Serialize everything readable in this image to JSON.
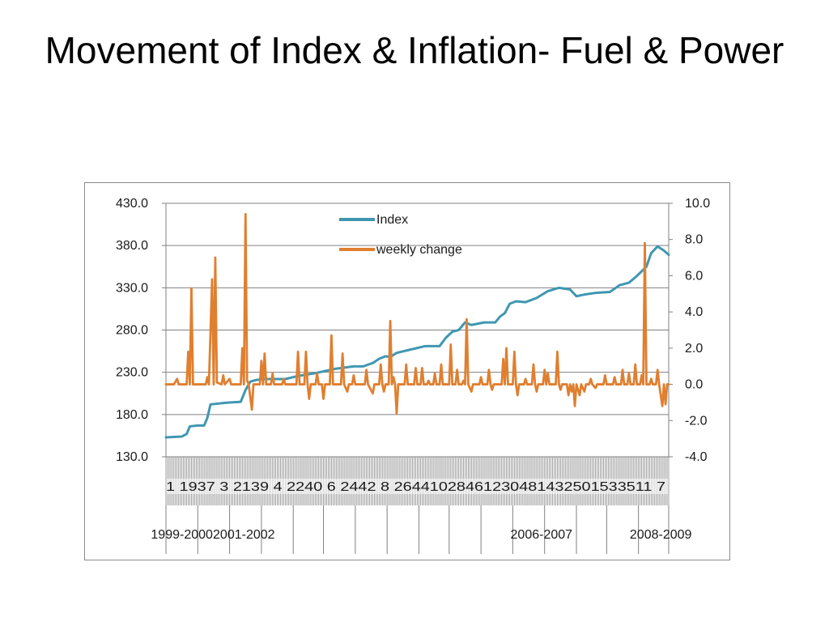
{
  "slide": {
    "title": "Movement of Index & Inflation- Fuel & Power"
  },
  "colors": {
    "index": "#4097B1",
    "weekly_change": "#E07F2F",
    "grid": "#808080",
    "axis": "#808080"
  },
  "chart_data": {
    "type": "line",
    "title": "",
    "left_axis": {
      "min": 130,
      "max": 430,
      "step": 50,
      "tick_labels": [
        "430.0",
        "380.0",
        "330.0",
        "280.0",
        "230.0",
        "180.0",
        "130.0"
      ]
    },
    "right_axis": {
      "min": -4,
      "max": 10,
      "step": 2,
      "tick_labels": [
        "10.0",
        "8.0",
        "6.0",
        "4.0",
        "2.0",
        "0.0",
        "-2.0",
        "-4.0"
      ]
    },
    "gridlines": true,
    "legend_position": "top-center",
    "week_tick_labels": "1 1937 3 2139 4 2240 6 2442 8 26441028461230481432501533511 7",
    "year_labels": [
      {
        "label": "1999-2000",
        "at_week": 10
      },
      {
        "label": "2001-2002",
        "at_week": 49
      },
      {
        "label": "2006-2007",
        "at_week": 236
      },
      {
        "label": "2008-2009",
        "at_week": 311
      }
    ],
    "year_boundaries": [
      0,
      20,
      40,
      60,
      80,
      99,
      119,
      139,
      159,
      178,
      198,
      218,
      238,
      258,
      277,
      297,
      316
    ],
    "week_count": 316,
    "series": [
      {
        "name": "Index",
        "axis": "left",
        "points": [
          [
            0,
            153
          ],
          [
            10,
            154
          ],
          [
            13,
            157
          ],
          [
            15,
            166
          ],
          [
            20,
            167
          ],
          [
            24,
            167
          ],
          [
            26,
            176
          ],
          [
            28,
            192
          ],
          [
            38,
            194
          ],
          [
            47,
            195
          ],
          [
            50,
            209
          ],
          [
            53,
            219
          ],
          [
            57,
            221
          ],
          [
            62,
            222
          ],
          [
            75,
            222
          ],
          [
            84,
            226
          ],
          [
            94,
            229
          ],
          [
            106,
            234
          ],
          [
            118,
            237
          ],
          [
            124,
            237
          ],
          [
            130,
            241
          ],
          [
            134,
            246
          ],
          [
            138,
            249
          ],
          [
            141,
            248
          ],
          [
            145,
            253
          ],
          [
            154,
            257
          ],
          [
            163,
            261
          ],
          [
            172,
            261
          ],
          [
            176,
            271
          ],
          [
            180,
            278
          ],
          [
            184,
            280
          ],
          [
            188,
            289
          ],
          [
            192,
            286
          ],
          [
            200,
            289
          ],
          [
            207,
            289
          ],
          [
            210,
            296
          ],
          [
            213,
            300
          ],
          [
            216,
            311
          ],
          [
            220,
            314
          ],
          [
            226,
            313
          ],
          [
            233,
            318
          ],
          [
            240,
            326
          ],
          [
            247,
            330
          ],
          [
            254,
            328
          ],
          [
            258,
            320
          ],
          [
            263,
            322
          ],
          [
            270,
            324
          ],
          [
            279,
            325
          ],
          [
            285,
            333
          ],
          [
            291,
            336
          ],
          [
            296,
            344
          ],
          [
            302,
            355
          ],
          [
            305,
            371
          ],
          [
            309,
            379
          ],
          [
            313,
            374
          ],
          [
            316,
            369
          ]
        ]
      },
      {
        "name": "weekly change",
        "axis": "right",
        "points": [
          [
            0,
            0
          ],
          [
            5,
            0
          ],
          [
            7,
            0.3
          ],
          [
            8,
            0
          ],
          [
            13,
            0
          ],
          [
            14,
            1.8
          ],
          [
            15,
            0
          ],
          [
            16,
            5.3
          ],
          [
            17,
            0
          ],
          [
            25,
            0
          ],
          [
            26,
            0.4
          ],
          [
            27,
            0
          ],
          [
            29,
            5.8
          ],
          [
            30,
            0
          ],
          [
            31,
            7
          ],
          [
            32,
            0.1
          ],
          [
            35,
            0
          ],
          [
            36,
            0.5
          ],
          [
            37,
            0
          ],
          [
            40,
            0.3
          ],
          [
            41,
            0
          ],
          [
            47,
            0
          ],
          [
            48,
            2
          ],
          [
            49,
            0
          ],
          [
            50,
            9.4
          ],
          [
            51,
            0.2
          ],
          [
            52,
            0
          ],
          [
            54,
            -1.4
          ],
          [
            55,
            0
          ],
          [
            59,
            0
          ],
          [
            60,
            1.3
          ],
          [
            61,
            0
          ],
          [
            62,
            1.7
          ],
          [
            63,
            0
          ],
          [
            66,
            0
          ],
          [
            67,
            0.6
          ],
          [
            68,
            0
          ],
          [
            73,
            0
          ],
          [
            74,
            0.3
          ],
          [
            75,
            0
          ],
          [
            82,
            0
          ],
          [
            83,
            1.8
          ],
          [
            84,
            0
          ],
          [
            87,
            0
          ],
          [
            88,
            1.8
          ],
          [
            89,
            0
          ],
          [
            90,
            -0.8
          ],
          [
            91,
            0
          ],
          [
            94,
            0
          ],
          [
            95,
            0.6
          ],
          [
            96,
            0
          ],
          [
            98,
            0
          ],
          [
            99,
            -0.8
          ],
          [
            100,
            0
          ],
          [
            103,
            0
          ],
          [
            104,
            2.7
          ],
          [
            105,
            0
          ],
          [
            110,
            0
          ],
          [
            111,
            1.7
          ],
          [
            112,
            0
          ],
          [
            114,
            -0.4
          ],
          [
            115,
            0
          ],
          [
            117,
            0
          ],
          [
            118,
            0.5
          ],
          [
            119,
            0
          ],
          [
            125,
            0
          ],
          [
            126,
            0.8
          ],
          [
            127,
            0
          ],
          [
            130,
            -0.5
          ],
          [
            131,
            0
          ],
          [
            134,
            0
          ],
          [
            135,
            1.1
          ],
          [
            136,
            0
          ],
          [
            137,
            -0.4
          ],
          [
            138,
            0
          ],
          [
            140,
            0
          ],
          [
            141,
            3.5
          ],
          [
            142,
            0
          ],
          [
            143,
            0.4
          ],
          [
            144,
            0
          ],
          [
            145,
            -1.6
          ],
          [
            146,
            0
          ],
          [
            150,
            0
          ],
          [
            151,
            1.1
          ],
          [
            152,
            0
          ],
          [
            156,
            0
          ],
          [
            157,
            0.9
          ],
          [
            158,
            0
          ],
          [
            160,
            0
          ],
          [
            161,
            0.9
          ],
          [
            162,
            0
          ],
          [
            164,
            0
          ],
          [
            165,
            0.2
          ],
          [
            166,
            0
          ],
          [
            168,
            0
          ],
          [
            169,
            0.6
          ],
          [
            170,
            0
          ],
          [
            172,
            0
          ],
          [
            173,
            1.1
          ],
          [
            174,
            0
          ],
          [
            178,
            0
          ],
          [
            179,
            2.2
          ],
          [
            180,
            0
          ],
          [
            182,
            0
          ],
          [
            183,
            0.8
          ],
          [
            184,
            0
          ],
          [
            186,
            0
          ],
          [
            187,
            0.2
          ],
          [
            188,
            0
          ],
          [
            189,
            3.6
          ],
          [
            190,
            0
          ],
          [
            192,
            -0.4
          ],
          [
            193,
            0
          ],
          [
            197,
            0
          ],
          [
            198,
            0.4
          ],
          [
            199,
            0
          ],
          [
            202,
            0
          ],
          [
            203,
            0.8
          ],
          [
            204,
            0
          ],
          [
            205,
            -0.3
          ],
          [
            206,
            0
          ],
          [
            211,
            0
          ],
          [
            212,
            1.4
          ],
          [
            213,
            0
          ],
          [
            214,
            2
          ],
          [
            215,
            0
          ],
          [
            218,
            0
          ],
          [
            219,
            1.8
          ],
          [
            220,
            0
          ],
          [
            221,
            -0.6
          ],
          [
            222,
            0
          ],
          [
            225,
            0
          ],
          [
            226,
            0.3
          ],
          [
            227,
            0
          ],
          [
            230,
            0
          ],
          [
            231,
            1.1
          ],
          [
            232,
            0
          ],
          [
            233,
            -0.4
          ],
          [
            234,
            0
          ],
          [
            237,
            0
          ],
          [
            238,
            0.8
          ],
          [
            239,
            0
          ],
          [
            240,
            0.6
          ],
          [
            241,
            0
          ],
          [
            245,
            0
          ],
          [
            246,
            1.8
          ],
          [
            247,
            0
          ],
          [
            248,
            -0.3
          ],
          [
            249,
            0
          ],
          [
            252,
            0
          ],
          [
            253,
            -0.6
          ],
          [
            254,
            0
          ],
          [
            255,
            -0.4
          ],
          [
            256,
            0
          ],
          [
            257,
            -1.2
          ],
          [
            258,
            0
          ],
          [
            260,
            -0.6
          ],
          [
            261,
            0
          ],
          [
            263,
            -0.4
          ],
          [
            264,
            0
          ],
          [
            266,
            0
          ],
          [
            267,
            0.3
          ],
          [
            268,
            0
          ],
          [
            270,
            -0.2
          ],
          [
            271,
            0
          ],
          [
            275,
            0
          ],
          [
            276,
            0.5
          ],
          [
            277,
            0
          ],
          [
            281,
            0
          ],
          [
            282,
            0.4
          ],
          [
            283,
            0
          ],
          [
            286,
            0
          ],
          [
            287,
            0.8
          ],
          [
            288,
            0
          ],
          [
            290,
            0
          ],
          [
            291,
            0.6
          ],
          [
            292,
            0
          ],
          [
            294,
            0
          ],
          [
            295,
            1.1
          ],
          [
            296,
            0
          ],
          [
            298,
            0
          ],
          [
            299,
            0.5
          ],
          [
            300,
            0
          ],
          [
            301,
            7.8
          ],
          [
            302,
            0
          ],
          [
            304,
            0
          ],
          [
            305,
            0.3
          ],
          [
            306,
            0
          ],
          [
            308,
            0
          ],
          [
            309,
            0.8
          ],
          [
            310,
            0
          ],
          [
            312,
            -1.2
          ],
          [
            313,
            0
          ],
          [
            314,
            -1.1
          ],
          [
            315,
            0
          ],
          [
            316,
            0
          ]
        ]
      }
    ]
  }
}
